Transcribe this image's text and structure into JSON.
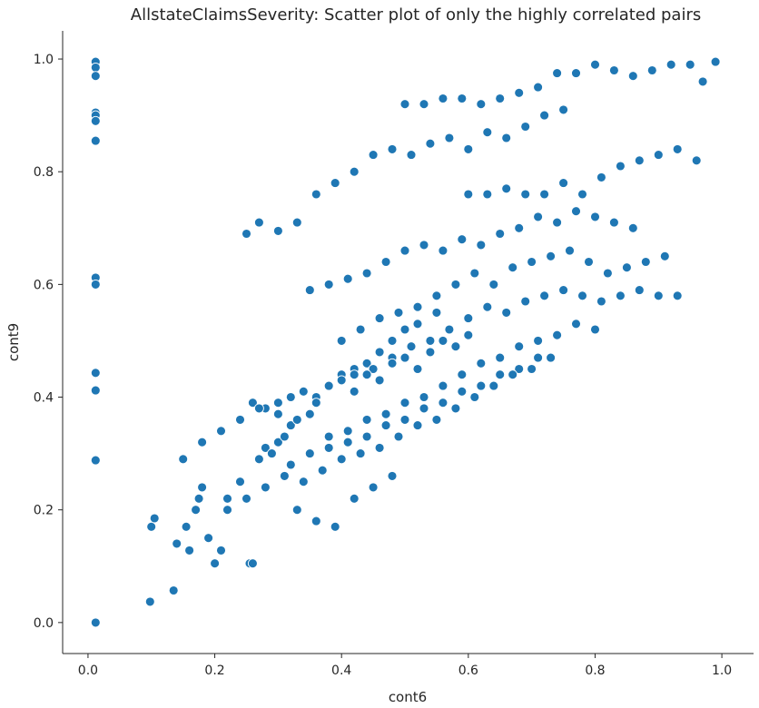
{
  "chart_data": {
    "type": "scatter",
    "title": "AllstateClaimsSeverity: Scatter plot of only the highly correlated pairs",
    "xlabel": "cont6",
    "ylabel": "cont9",
    "xlim": [
      -0.04,
      1.05
    ],
    "ylim": [
      -0.055,
      1.05
    ],
    "xticks": [
      0.0,
      0.2,
      0.4,
      0.6,
      0.8,
      1.0
    ],
    "yticks": [
      0.0,
      0.2,
      0.4,
      0.6,
      0.8,
      1.0
    ],
    "xtick_labels": [
      "0.0",
      "0.2",
      "0.4",
      "0.6",
      "0.8",
      "1.0"
    ],
    "ytick_labels": [
      "0.0",
      "0.2",
      "0.4",
      "0.6",
      "0.8",
      "1.0"
    ],
    "grid": false,
    "legend": null,
    "marker_color": "#1f77b4",
    "marker_edge_color": "#ffffff",
    "series": [
      {
        "x": [
          0.012,
          0.012,
          0.012,
          0.012,
          0.012,
          0.012,
          0.012,
          0.012,
          0.012,
          0.012,
          0.012,
          0.012,
          0.012,
          0.098,
          0.1,
          0.105,
          0.135,
          0.14,
          0.155,
          0.16,
          0.17,
          0.175,
          0.18,
          0.19,
          0.2,
          0.21,
          0.22,
          0.24,
          0.255,
          0.26,
          0.27,
          0.28,
          0.29,
          0.3,
          0.31,
          0.32,
          0.33,
          0.35,
          0.36,
          0.38,
          0.4,
          0.42,
          0.44,
          0.46,
          0.48,
          0.5,
          0.52,
          0.55,
          0.25,
          0.27,
          0.3,
          0.33,
          0.36,
          0.39,
          0.42,
          0.45,
          0.48,
          0.51,
          0.54,
          0.57,
          0.6,
          0.63,
          0.66,
          0.69,
          0.72,
          0.75,
          0.35,
          0.38,
          0.41,
          0.44,
          0.47,
          0.5,
          0.53,
          0.56,
          0.59,
          0.62,
          0.65,
          0.68,
          0.71,
          0.74,
          0.77,
          0.8,
          0.83,
          0.86,
          0.4,
          0.43,
          0.46,
          0.49,
          0.52,
          0.55,
          0.58,
          0.61,
          0.64,
          0.67,
          0.7,
          0.73,
          0.76,
          0.79,
          0.82,
          0.85,
          0.88,
          0.91,
          0.42,
          0.45,
          0.48,
          0.51,
          0.54,
          0.57,
          0.6,
          0.63,
          0.66,
          0.69,
          0.72,
          0.75,
          0.78,
          0.81,
          0.84,
          0.87,
          0.9,
          0.93,
          0.26,
          0.28,
          0.3,
          0.32,
          0.34,
          0.36,
          0.38,
          0.4,
          0.42,
          0.44,
          0.46,
          0.48,
          0.5,
          0.52,
          0.54,
          0.56,
          0.58,
          0.6,
          0.5,
          0.53,
          0.56,
          0.59,
          0.62,
          0.65,
          0.68,
          0.71,
          0.74,
          0.77,
          0.8,
          0.83,
          0.86,
          0.89,
          0.92,
          0.95,
          0.97,
          0.99,
          0.6,
          0.63,
          0.66,
          0.69,
          0.72,
          0.75,
          0.78,
          0.81,
          0.84,
          0.87,
          0.9,
          0.93,
          0.96,
          0.38,
          0.41,
          0.44,
          0.47,
          0.5,
          0.53,
          0.56,
          0.59,
          0.62,
          0.65,
          0.68,
          0.71,
          0.74,
          0.77,
          0.8,
          0.32,
          0.35,
          0.38,
          0.41,
          0.44,
          0.47,
          0.5,
          0.53,
          0.56,
          0.59,
          0.62,
          0.65,
          0.68,
          0.71,
          0.22,
          0.25,
          0.28,
          0.31,
          0.34,
          0.37,
          0.4,
          0.43,
          0.46,
          0.49,
          0.52,
          0.55,
          0.58,
          0.61,
          0.64,
          0.67,
          0.7,
          0.73,
          0.15,
          0.18,
          0.21,
          0.24,
          0.27,
          0.3,
          0.33,
          0.36,
          0.39,
          0.42,
          0.45,
          0.48
        ],
        "y": [
          0.995,
          0.985,
          0.97,
          0.905,
          0.9,
          0.89,
          0.855,
          0.612,
          0.6,
          0.443,
          0.412,
          0.288,
          0.0,
          0.037,
          0.17,
          0.185,
          0.057,
          0.14,
          0.17,
          0.128,
          0.2,
          0.22,
          0.24,
          0.15,
          0.105,
          0.128,
          0.22,
          0.25,
          0.105,
          0.105,
          0.29,
          0.31,
          0.3,
          0.32,
          0.33,
          0.35,
          0.36,
          0.37,
          0.4,
          0.42,
          0.44,
          0.45,
          0.46,
          0.48,
          0.5,
          0.52,
          0.53,
          0.55,
          0.69,
          0.71,
          0.695,
          0.71,
          0.76,
          0.78,
          0.8,
          0.83,
          0.84,
          0.83,
          0.85,
          0.86,
          0.84,
          0.87,
          0.86,
          0.88,
          0.9,
          0.91,
          0.59,
          0.6,
          0.61,
          0.62,
          0.64,
          0.66,
          0.67,
          0.66,
          0.68,
          0.67,
          0.69,
          0.7,
          0.72,
          0.71,
          0.73,
          0.72,
          0.71,
          0.7,
          0.5,
          0.52,
          0.54,
          0.55,
          0.56,
          0.58,
          0.6,
          0.62,
          0.6,
          0.63,
          0.64,
          0.65,
          0.66,
          0.64,
          0.62,
          0.63,
          0.64,
          0.65,
          0.44,
          0.45,
          0.47,
          0.49,
          0.5,
          0.52,
          0.54,
          0.56,
          0.55,
          0.57,
          0.58,
          0.59,
          0.58,
          0.57,
          0.58,
          0.59,
          0.58,
          0.58,
          0.39,
          0.38,
          0.37,
          0.4,
          0.41,
          0.39,
          0.42,
          0.43,
          0.41,
          0.44,
          0.43,
          0.46,
          0.47,
          0.45,
          0.48,
          0.5,
          0.49,
          0.51,
          0.92,
          0.92,
          0.93,
          0.93,
          0.92,
          0.93,
          0.94,
          0.95,
          0.975,
          0.975,
          0.99,
          0.98,
          0.97,
          0.98,
          0.99,
          0.99,
          0.96,
          0.995,
          0.76,
          0.76,
          0.77,
          0.76,
          0.76,
          0.78,
          0.76,
          0.79,
          0.81,
          0.82,
          0.83,
          0.84,
          0.82,
          0.33,
          0.34,
          0.36,
          0.37,
          0.39,
          0.4,
          0.42,
          0.44,
          0.46,
          0.47,
          0.49,
          0.5,
          0.51,
          0.53,
          0.52,
          0.28,
          0.3,
          0.31,
          0.32,
          0.33,
          0.35,
          0.36,
          0.38,
          0.39,
          0.41,
          0.42,
          0.44,
          0.45,
          0.47,
          0.2,
          0.22,
          0.24,
          0.26,
          0.25,
          0.27,
          0.29,
          0.3,
          0.31,
          0.33,
          0.35,
          0.36,
          0.38,
          0.4,
          0.42,
          0.44,
          0.45,
          0.47,
          0.29,
          0.32,
          0.34,
          0.36,
          0.38,
          0.39,
          0.2,
          0.18,
          0.17,
          0.22,
          0.24,
          0.26
        ]
      }
    ]
  }
}
